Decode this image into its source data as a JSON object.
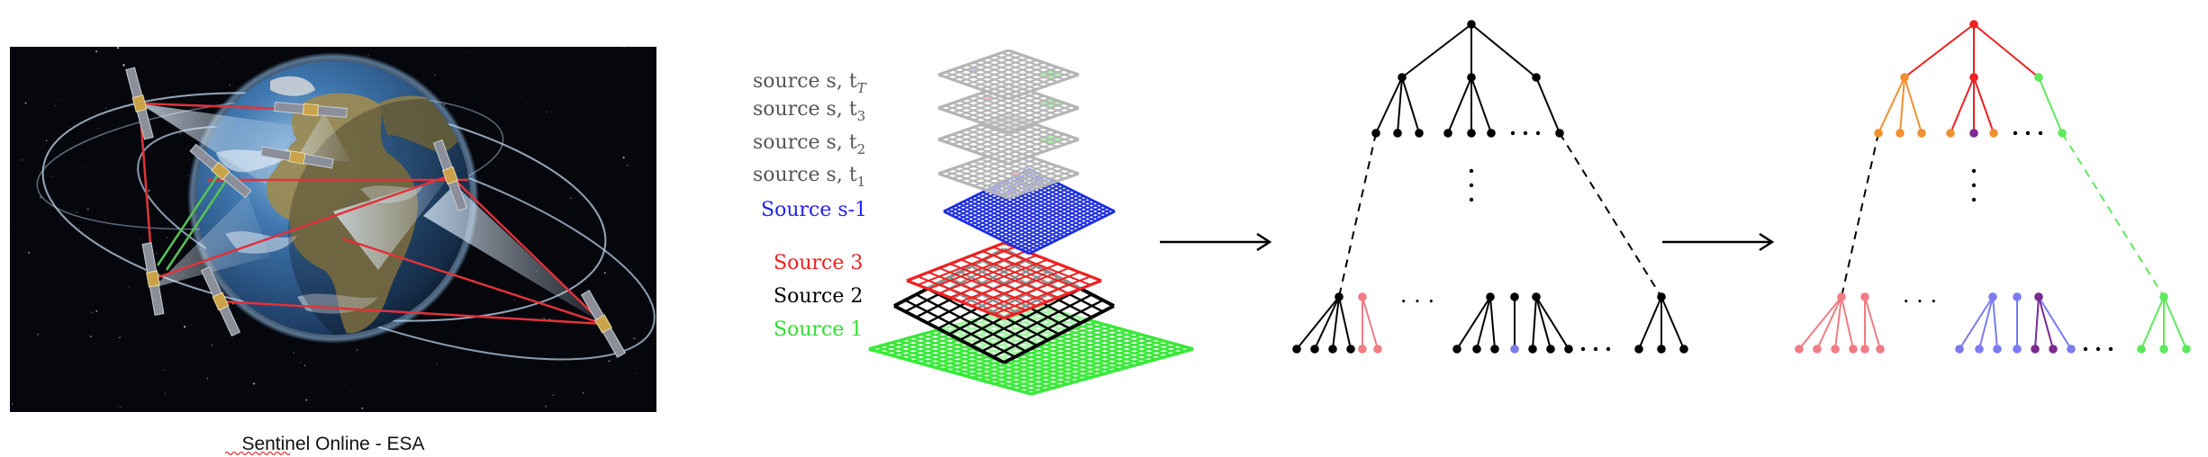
{
  "caption": {
    "prefix": "Sentinel",
    "rest": " Online - ESA"
  },
  "sources": {
    "temporal": [
      {
        "base": "source s, t",
        "sub": "T"
      },
      {
        "base": "source s, t",
        "sub": "3"
      },
      {
        "base": "source s, t",
        "sub": "2"
      },
      {
        "base": "source s, t",
        "sub": "1"
      }
    ],
    "source_s_minus_1": "Source s-1",
    "source_3": "Source 3",
    "source_2": "Source 2",
    "source_1": "Source 1"
  },
  "tree": {
    "ellipsis_h": ". . .",
    "ellipsis_mid": ". . .",
    "ellipsis_v": "⋮"
  },
  "colors": {
    "space_bg": "#05070d",
    "earth_ocean": "#2e5f93",
    "earth_land": "#9a8a54",
    "orbit": "#b9cfe6",
    "link_red": "#e0333a",
    "link_green": "#56c254",
    "beam": "#cfe3f6",
    "grid_gray": "#b5b5b5",
    "grid_blue": "#1e2ee0",
    "grid_red": "#ee2020",
    "grid_black": "#000000",
    "grid_green": "#3ae83a",
    "cell_blue": "#b8b8ee",
    "cell_red": "#f2b8b8",
    "cell_green": "#9ef09e",
    "text_gray": "#555555",
    "text_blue": "#2222ee",
    "text_red": "#ee2020",
    "text_green": "#33dd33",
    "node_black": "#000000",
    "node_red": "#ee2020",
    "node_orange": "#f09030",
    "node_pink": "#f07c84",
    "node_blue": "#7b7bf2",
    "node_purple": "#7a2a90",
    "node_green": "#5ee85e"
  }
}
